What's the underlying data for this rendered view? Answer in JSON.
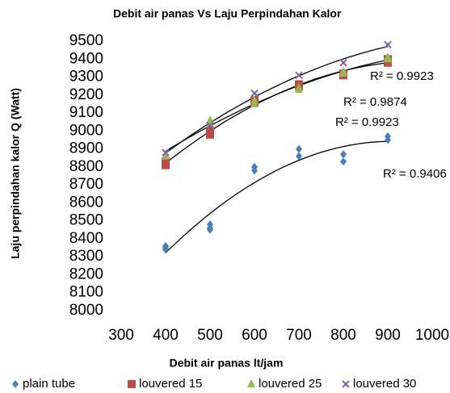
{
  "chart_data": {
    "type": "scatter",
    "title": "Debit  air panas Vs Laju Perpindahan Kalor",
    "xlabel": "Debit air panas lt/jam",
    "ylabel": "Laju perpindahan kalor Q (Watt)",
    "xlim": [
      300,
      1000
    ],
    "xticks": [
      300,
      400,
      500,
      600,
      700,
      800,
      900,
      1000
    ],
    "ylim": [
      8000,
      9500
    ],
    "yticks": [
      8000,
      8100,
      8200,
      8300,
      8400,
      8500,
      8600,
      8700,
      8800,
      8900,
      9000,
      9100,
      9200,
      9300,
      9400,
      9500
    ],
    "grid": false,
    "legend": "bottom",
    "trendline": "polynomial-2",
    "series": [
      {
        "name": "plain tube",
        "color": "#4a7ebb",
        "marker": "diamond",
        "x": [
          400,
          400,
          400,
          500,
          500,
          500,
          600,
          600,
          700,
          700,
          800,
          800,
          900,
          900
        ],
        "values": [
          8350,
          8340,
          8360,
          8480,
          8450,
          8460,
          8800,
          8780,
          8900,
          8860,
          8870,
          8830,
          8970,
          8950
        ]
      },
      {
        "name": "louvered 15",
        "color": "#be4b48",
        "marker": "square",
        "x": [
          400,
          400,
          500,
          500,
          600,
          600,
          700,
          700,
          800,
          800,
          900,
          900
        ],
        "values": [
          8830,
          8810,
          9000,
          8980,
          9170,
          9160,
          9260,
          9250,
          9320,
          9310,
          9400,
          9380
        ]
      },
      {
        "name": "louvered 25",
        "color": "#98b954",
        "marker": "triangle",
        "x": [
          400,
          500,
          500,
          600,
          600,
          700,
          700,
          800,
          800,
          900,
          900
        ],
        "values": [
          8860,
          9060,
          9040,
          9150,
          9170,
          9240,
          9230,
          9320,
          9330,
          9410,
          9400
        ]
      },
      {
        "name": "louvered 30",
        "color": "#7d60a0",
        "marker": "x",
        "x": [
          400,
          500,
          600,
          700,
          800,
          900
        ],
        "values": [
          8880,
          9030,
          9210,
          9310,
          9380,
          9480
        ]
      }
    ],
    "annotations": [
      "R² = 0.9923",
      "R² = 0.9874",
      "R² = 0.9923",
      "R² = 0.9406"
    ]
  }
}
